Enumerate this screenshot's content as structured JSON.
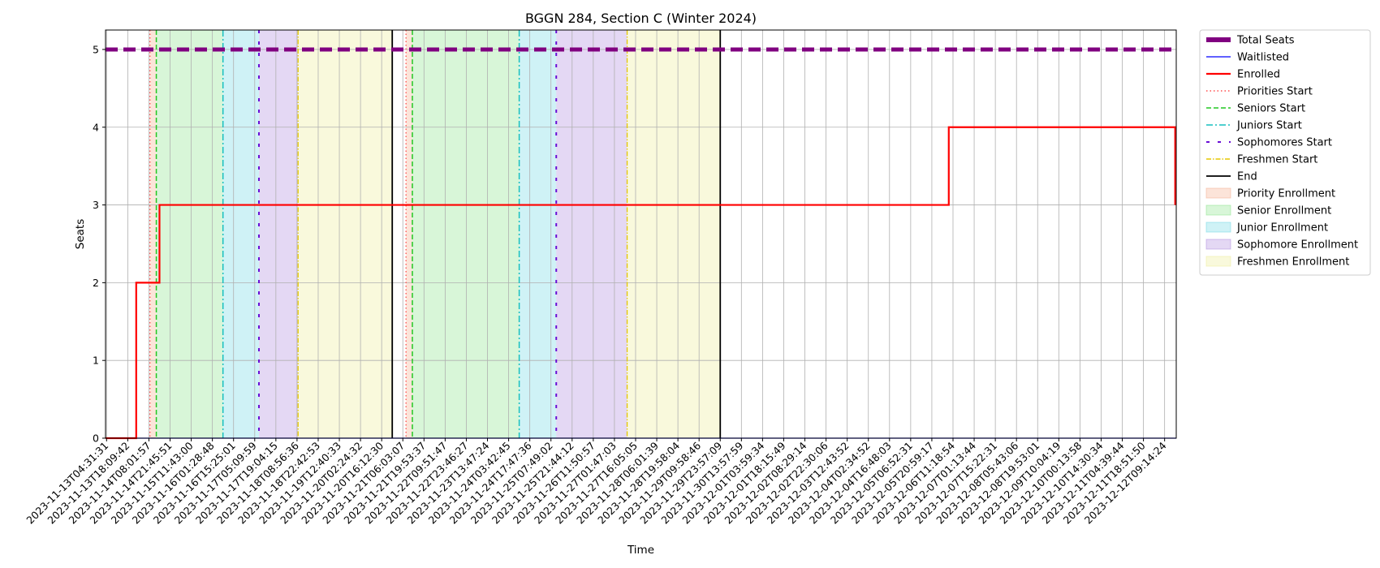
{
  "chart_data": {
    "type": "line",
    "title": "BGGN 284, Section C (Winter 2024)",
    "xlabel": "Time",
    "ylabel": "Seats",
    "ylim": [
      0,
      5.25
    ],
    "y_ticks": [
      0,
      1,
      2,
      3,
      4,
      5
    ],
    "x_tick_labels": [
      "2023-11-13T04:31:31",
      "2023-11-13T18:09:42",
      "2023-11-14T08:01:57",
      "2023-11-14T21:45:51",
      "2023-11-15T11:43:00",
      "2023-11-16T01:28:48",
      "2023-11-16T15:25:01",
      "2023-11-17T05:09:59",
      "2023-11-17T19:04:15",
      "2023-11-18T08:56:36",
      "2023-11-18T22:42:53",
      "2023-11-19T12:40:33",
      "2023-11-20T02:24:32",
      "2023-11-20T16:12:30",
      "2023-11-21T06:03:07",
      "2023-11-21T19:53:37",
      "2023-11-22T09:51:47",
      "2023-11-22T23:46:27",
      "2023-11-23T13:47:24",
      "2023-11-24T03:42:45",
      "2023-11-24T17:47:36",
      "2023-11-25T07:49:02",
      "2023-11-25T21:44:12",
      "2023-11-26T11:50:57",
      "2023-11-27T01:47:03",
      "2023-11-27T16:05:05",
      "2023-11-28T06:01:39",
      "2023-11-28T19:58:04",
      "2023-11-29T09:58:46",
      "2023-11-29T23:57:09",
      "2023-11-30T13:57:59",
      "2023-12-01T03:59:34",
      "2023-12-01T18:15:49",
      "2023-12-02T08:29:14",
      "2023-12-02T22:30:06",
      "2023-12-03T12:43:52",
      "2023-12-04T02:34:52",
      "2023-12-04T16:48:03",
      "2023-12-05T06:52:31",
      "2023-12-05T20:59:17",
      "2023-12-06T11:18:54",
      "2023-12-07T01:13:44",
      "2023-12-07T15:22:31",
      "2023-12-08T05:43:06",
      "2023-12-08T19:53:01",
      "2023-12-09T10:04:19",
      "2023-12-10T00:13:58",
      "2023-12-10T14:30:34",
      "2023-12-11T04:39:44",
      "2023-12-11T18:51:50",
      "2023-12-12T09:14:24"
    ],
    "x_range_index": [
      -0.05,
      50.55
    ],
    "series": [
      {
        "name": "Total Seats",
        "color": "#800080",
        "style": "dashed-thick",
        "points": [
          [
            -0.05,
            5
          ],
          [
            50.55,
            5
          ]
        ]
      },
      {
        "name": "Waitlisted",
        "color": "#0000ff",
        "style": "solid",
        "points": [
          [
            -0.05,
            0
          ],
          [
            50.55,
            0
          ]
        ]
      },
      {
        "name": "Enrolled",
        "color": "#ff0000",
        "style": "step",
        "points": [
          [
            -0.05,
            0
          ],
          [
            1.4,
            0
          ],
          [
            1.4,
            2
          ],
          [
            2.5,
            2
          ],
          [
            2.5,
            3
          ],
          [
            39.8,
            3
          ],
          [
            39.8,
            4
          ],
          [
            50.5,
            4
          ],
          [
            50.5,
            3
          ]
        ]
      }
    ],
    "enrollment_rounds": [
      {
        "priority_start": 2.05,
        "seniors_start": 2.35,
        "juniors_start": 5.5,
        "sophomores_start": 7.2,
        "freshmen_start": 9.05,
        "end": 13.5
      },
      {
        "priority_start": 14.15,
        "seniors_start": 14.45,
        "juniors_start": 19.5,
        "sophomores_start": 21.25,
        "freshmen_start": 24.6,
        "end": 29.0
      }
    ],
    "period_colors": {
      "priority": "#f4a582",
      "senior": "#7fe07f",
      "junior": "#5fd3e0",
      "sophomore": "#a77fdb",
      "freshmen": "#ebeb8c"
    },
    "line_colors": {
      "priorities_start": "#ff4d4d",
      "seniors_start": "#22c722",
      "juniors_start": "#17bfbf",
      "sophomores_start": "#6a0dd6",
      "freshmen_start": "#e5c700",
      "end": "#000000"
    },
    "legend": {
      "placement": "outside-right",
      "entries": [
        {
          "label": "Total Seats",
          "kind": "line",
          "color": "#800080",
          "dash": "none",
          "width": 6
        },
        {
          "label": "Waitlisted",
          "kind": "line",
          "color": "#0000ff",
          "dash": "none",
          "width": 1.3
        },
        {
          "label": "Enrolled",
          "kind": "line",
          "color": "#ff0000",
          "dash": "none",
          "width": 2.2
        },
        {
          "label": "Priorities Start",
          "kind": "line",
          "color": "#ff4d4d",
          "dash": "1.5 3",
          "width": 1.5
        },
        {
          "label": "Seniors Start",
          "kind": "line",
          "color": "#22c722",
          "dash": "6 3",
          "width": 1.5
        },
        {
          "label": "Juniors Start",
          "kind": "line",
          "color": "#17bfbf",
          "dash": "8 3 2 3",
          "width": 1.5
        },
        {
          "label": "Sophomores Start",
          "kind": "line",
          "color": "#6a0dd6",
          "dash": "4 10",
          "width": 2
        },
        {
          "label": "Freshmen Start",
          "kind": "line",
          "color": "#e5c700",
          "dash": "6 2 1.5 2",
          "width": 1.5
        },
        {
          "label": "End",
          "kind": "line",
          "color": "#000000",
          "dash": "none",
          "width": 1.8
        },
        {
          "label": "Priority Enrollment",
          "kind": "patch",
          "color": "#f4a582"
        },
        {
          "label": "Senior Enrollment",
          "kind": "patch",
          "color": "#7fe07f"
        },
        {
          "label": "Junior Enrollment",
          "kind": "patch",
          "color": "#5fd3e0"
        },
        {
          "label": "Sophomore Enrollment",
          "kind": "patch",
          "color": "#a77fdb"
        },
        {
          "label": "Freshmen Enrollment",
          "kind": "patch",
          "color": "#ebeb8c"
        }
      ]
    },
    "grid": true
  }
}
